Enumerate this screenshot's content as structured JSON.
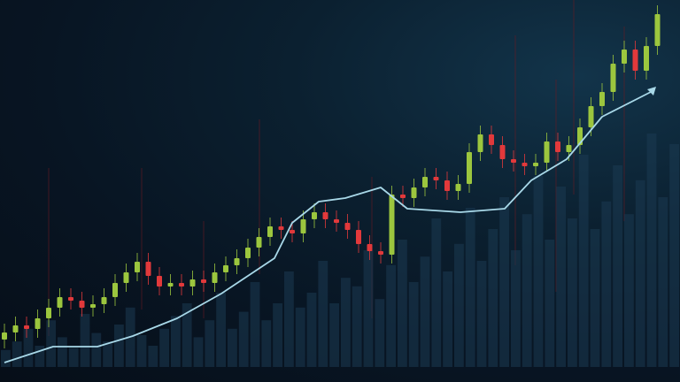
{
  "chart_data": {
    "type": "candlestick",
    "title": "",
    "xlabel": "",
    "ylabel": "",
    "axes_visible": false,
    "grid": false,
    "ylim": [
      0,
      108
    ],
    "colors": {
      "up": "#9cc63e",
      "down": "#e2393b",
      "trend_line": "#a8d8e8",
      "volume": "#1b3a52",
      "background": "#081523"
    },
    "candles": {
      "open": [
        12,
        14,
        16,
        15,
        18,
        21,
        24,
        23,
        21,
        22,
        24,
        28,
        31,
        34,
        30,
        27,
        28,
        27,
        29,
        28,
        31,
        33,
        35,
        38,
        41,
        44,
        43,
        42,
        46,
        48,
        46,
        45,
        43,
        39,
        37,
        36,
        53,
        52,
        55,
        58,
        57,
        54,
        56,
        65,
        70,
        67,
        63,
        62,
        61,
        62,
        68,
        65,
        67,
        72,
        78,
        82,
        90,
        94,
        88,
        95
      ],
      "close": [
        14,
        16,
        15,
        18,
        21,
        24,
        23,
        21,
        22,
        24,
        28,
        31,
        34,
        30,
        27,
        28,
        27,
        29,
        28,
        31,
        33,
        35,
        38,
        41,
        44,
        43,
        42,
        46,
        48,
        46,
        45,
        43,
        39,
        37,
        36,
        53,
        52,
        55,
        58,
        57,
        54,
        56,
        65,
        70,
        67,
        63,
        62,
        61,
        62,
        68,
        65,
        67,
        72,
        78,
        82,
        90,
        94,
        88,
        95,
        104
      ]
    },
    "trend_line": {
      "x": [
        0,
        4.4,
        8.4,
        11.6,
        15.6,
        19.6,
        22,
        24.4,
        26,
        28.4,
        30.8,
        34,
        36.4,
        41.2,
        45.2,
        47.6,
        50.8,
        54,
        58.4
      ],
      "y": [
        5.5,
        10,
        10,
        13,
        18,
        25,
        30,
        35,
        45,
        51,
        52,
        55,
        49,
        48,
        49,
        57,
        63,
        75,
        82
      ]
    },
    "volume": [
      8,
      12,
      18,
      10,
      22,
      14,
      9,
      25,
      16,
      12,
      20,
      28,
      15,
      10,
      18,
      24,
      30,
      14,
      22,
      35,
      18,
      26,
      40,
      22,
      30,
      45,
      28,
      35,
      50,
      30,
      42,
      38,
      55,
      32,
      48,
      60,
      40,
      52,
      70,
      45,
      58,
      75,
      50,
      65,
      80,
      55,
      72,
      90,
      60,
      85,
      70,
      100,
      65,
      78,
      95,
      72,
      88,
      110,
      80,
      105
    ],
    "arrow": "arrow-up-right-icon"
  }
}
